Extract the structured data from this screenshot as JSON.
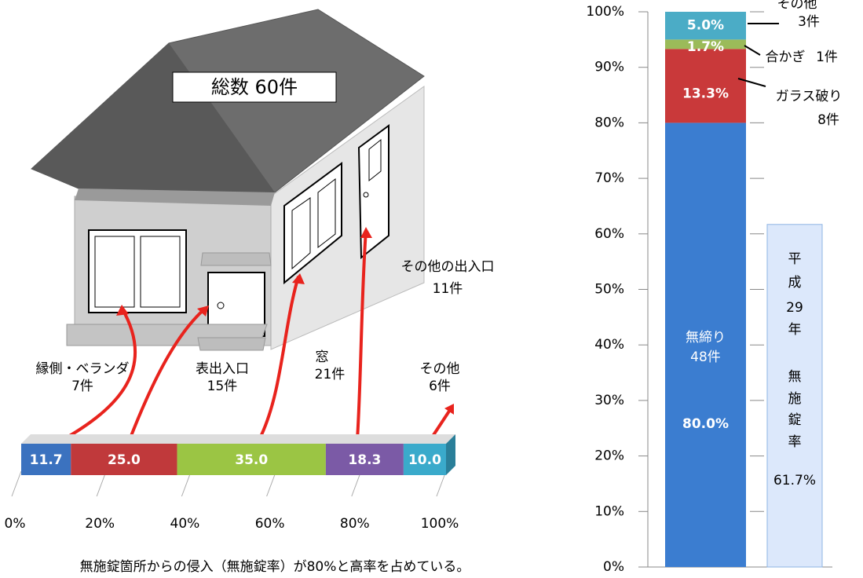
{
  "chart_data": [
    {
      "type": "stacked-bar-horizontal",
      "title": "総数 60件",
      "caption": "無施錠箇所からの侵入（無施錠率）が80%と高率を占めている。",
      "series": [
        {
          "name": "縁側・ベランダ",
          "count": "7件",
          "color": "#3b72bf",
          "values": [
            11.7
          ],
          "value_labels": [
            "11.7"
          ]
        },
        {
          "name": "表出入口",
          "count": "15件",
          "color": "#c0393b",
          "values": [
            25.0
          ],
          "value_labels": [
            "25.0"
          ]
        },
        {
          "name": "窓",
          "count": "21件",
          "color": "#9bc544",
          "values": [
            35.0
          ],
          "value_labels": [
            "35.0"
          ]
        },
        {
          "name": "その他の出入口",
          "count": "11件",
          "color": "#7b5aa6",
          "values": [
            18.3
          ],
          "value_labels": [
            "18.3"
          ]
        },
        {
          "name": "その他",
          "count": "6件",
          "color": "#3aaacb",
          "values": [
            10.0
          ],
          "value_labels": [
            "10.0"
          ]
        }
      ],
      "xlim": [
        0,
        100
      ],
      "xticks": [
        {
          "value": 0,
          "label": "0%"
        },
        {
          "value": 20,
          "label": "20%"
        },
        {
          "value": 40,
          "label": "40%"
        },
        {
          "value": 60,
          "label": "60%"
        },
        {
          "value": 80,
          "label": "80%"
        },
        {
          "value": 100,
          "label": "100%"
        }
      ]
    },
    {
      "type": "stacked-bar-vertical",
      "series": [
        {
          "name": "無締り",
          "count": "48件",
          "color": "#3b7dd0",
          "values": [
            80.0
          ],
          "value_labels": [
            "80.0%"
          ]
        },
        {
          "name": "ガラス破り",
          "count": "8件",
          "color": "#c9393a",
          "values": [
            13.3
          ],
          "value_labels": [
            "13.3%"
          ]
        },
        {
          "name": "合かぎ",
          "count": "1件",
          "color": "#9bbb59",
          "values": [
            1.7
          ],
          "value_labels": [
            "1.7%"
          ]
        },
        {
          "name": "その他",
          "count": "3件",
          "color": "#4bacc6",
          "values": [
            5.0
          ],
          "value_labels": [
            "5.0%"
          ]
        }
      ],
      "reference_bar": {
        "label_lines": [
          "平",
          "成",
          "29",
          "年",
          "無",
          "施",
          "錠",
          "率"
        ],
        "value": 61.7,
        "value_label": "61.7%",
        "color": "#dce8fb"
      },
      "ylim": [
        0,
        100
      ],
      "yticks": [
        {
          "value": 0,
          "label": "0%"
        },
        {
          "value": 10,
          "label": "10%"
        },
        {
          "value": 20,
          "label": "20%"
        },
        {
          "value": 30,
          "label": "30%"
        },
        {
          "value": 40,
          "label": "40%"
        },
        {
          "value": 50,
          "label": "50%"
        },
        {
          "value": 60,
          "label": "60%"
        },
        {
          "value": 70,
          "label": "70%"
        },
        {
          "value": 80,
          "label": "80%"
        },
        {
          "value": 90,
          "label": "90%"
        },
        {
          "value": 100,
          "label": "100%"
        }
      ]
    }
  ]
}
